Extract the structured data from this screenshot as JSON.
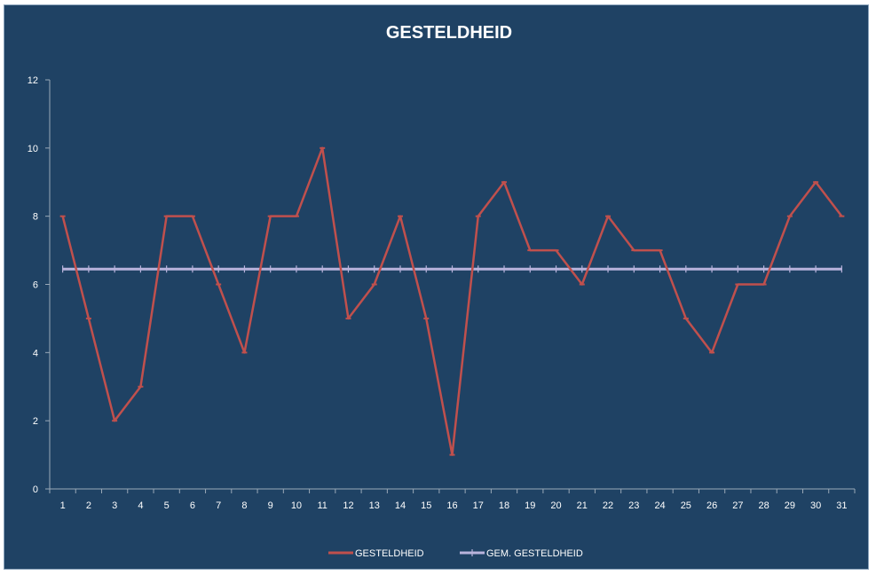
{
  "chart_data": {
    "type": "line",
    "title": "GESTELDHEID",
    "xlabel": "",
    "ylabel": "",
    "categories": [
      "1",
      "2",
      "3",
      "4",
      "5",
      "6",
      "7",
      "8",
      "9",
      "10",
      "11",
      "12",
      "13",
      "14",
      "15",
      "16",
      "17",
      "18",
      "19",
      "20",
      "21",
      "22",
      "23",
      "24",
      "25",
      "26",
      "27",
      "28",
      "29",
      "30",
      "31"
    ],
    "ylim": [
      0,
      12
    ],
    "yticks": [
      "0",
      "2",
      "4",
      "6",
      "8",
      "10",
      "12"
    ],
    "grid": false,
    "legend_position": "bottom",
    "series": [
      {
        "name": "GESTELDHEID",
        "color": "#c0504d",
        "values": [
          8,
          5,
          2,
          3,
          8,
          8,
          6,
          4,
          8,
          8,
          10,
          5,
          6,
          8,
          5,
          1,
          8,
          9,
          7,
          7,
          6,
          8,
          7,
          7,
          5,
          4,
          6,
          6,
          8,
          9,
          8
        ]
      },
      {
        "name": "GEM. GESTELDHEID",
        "color": "#b9b3dc",
        "values": [
          6.45,
          6.45,
          6.45,
          6.45,
          6.45,
          6.45,
          6.45,
          6.45,
          6.45,
          6.45,
          6.45,
          6.45,
          6.45,
          6.45,
          6.45,
          6.45,
          6.45,
          6.45,
          6.45,
          6.45,
          6.45,
          6.45,
          6.45,
          6.45,
          6.45,
          6.45,
          6.45,
          6.45,
          6.45,
          6.45,
          6.45
        ]
      }
    ]
  },
  "colors": {
    "background": "#1f4264",
    "axis": "#9aa9b8",
    "text": "#ffffff"
  }
}
